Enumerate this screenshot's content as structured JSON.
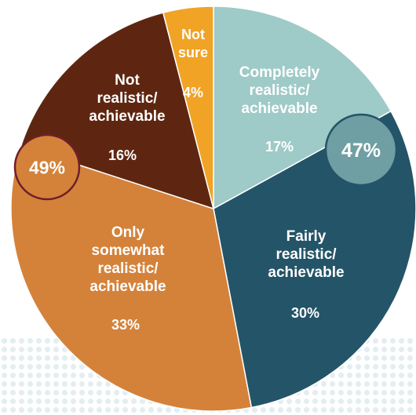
{
  "colors": {
    "completely": "#9ecac7",
    "fairly": "#245468",
    "somewhat": "#d4823a",
    "not_realistic": "#5e2610",
    "not_sure": "#f0a325",
    "background_dots": "#e4eef1",
    "callout_right_fill": "#6f9fa2",
    "callout_right_stroke": "#245468",
    "callout_left_fill": "#d4823a",
    "callout_left_stroke": "#6e1f2a"
  },
  "chart_data": {
    "type": "pie",
    "start": "top, clockwise",
    "slices": [
      {
        "key": "completely",
        "label_lines": [
          "Completely",
          "realistic/",
          "achievable"
        ],
        "value": 17,
        "pct_label": "17%"
      },
      {
        "key": "fairly",
        "label_lines": [
          "Fairly",
          "realistic/",
          "achievable"
        ],
        "value": 30,
        "pct_label": "30%"
      },
      {
        "key": "somewhat",
        "label_lines": [
          "Only",
          "somewhat",
          "realistic/",
          "achievable"
        ],
        "value": 33,
        "pct_label": "33%"
      },
      {
        "key": "not_realistic",
        "label_lines": [
          "Not",
          "realistic/",
          "achievable"
        ],
        "value": 16,
        "pct_label": "16%"
      },
      {
        "key": "not_sure",
        "label_lines": [
          "Not",
          "sure"
        ],
        "value": 4,
        "pct_label": "4%"
      }
    ],
    "callouts": [
      {
        "key": "right",
        "text": "47%"
      },
      {
        "key": "left",
        "text": "49%"
      }
    ]
  }
}
